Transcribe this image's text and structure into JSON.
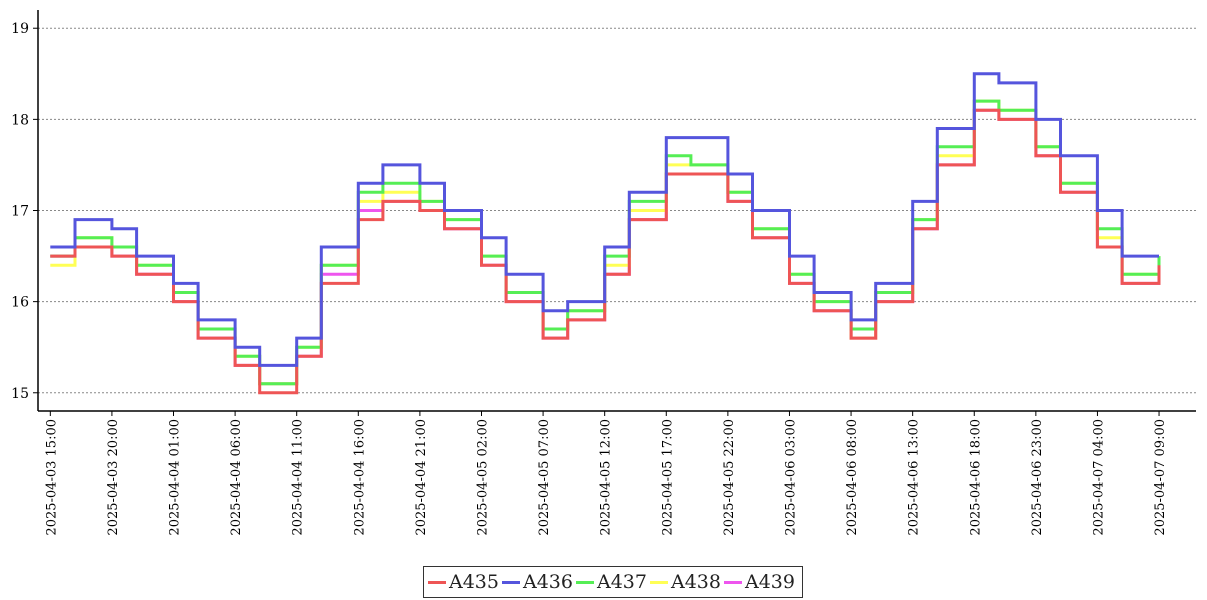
{
  "chart_data": {
    "type": "line",
    "step": true,
    "title": "",
    "xlabel": "",
    "ylabel": "",
    "ylim": [
      14.8,
      19.2
    ],
    "yticks": [
      15,
      16,
      17,
      18,
      19
    ],
    "xrange": [
      "2025-04-03 14:00",
      "2025-04-07 12:00"
    ],
    "xtick_labels": [
      "2025-04-03 15:00",
      "2025-04-03 20:00",
      "2025-04-04 01:00",
      "2025-04-04 06:00",
      "2025-04-04 11:00",
      "2025-04-04 16:00",
      "2025-04-04 21:00",
      "2025-04-05 02:00",
      "2025-04-05 07:00",
      "2025-04-05 12:00",
      "2025-04-05 17:00",
      "2025-04-05 22:00",
      "2025-04-06 03:00",
      "2025-04-06 08:00",
      "2025-04-06 13:00",
      "2025-04-06 18:00",
      "2025-04-06 23:00",
      "2025-04-07 04:00",
      "2025-04-07 09:00"
    ],
    "grid": {
      "y": true,
      "x": false,
      "style": "dotted"
    },
    "legend_position": "bottom-center",
    "x": [
      "2025-04-03 15:00",
      "2025-04-03 17:00",
      "2025-04-03 20:00",
      "2025-04-03 22:00",
      "2025-04-04 01:00",
      "2025-04-04 03:00",
      "2025-04-04 06:00",
      "2025-04-04 08:00",
      "2025-04-04 11:00",
      "2025-04-04 13:00",
      "2025-04-04 16:00",
      "2025-04-04 18:00",
      "2025-04-04 21:00",
      "2025-04-04 23:00",
      "2025-04-05 02:00",
      "2025-04-05 04:00",
      "2025-04-05 07:00",
      "2025-04-05 09:00",
      "2025-04-05 12:00",
      "2025-04-05 14:00",
      "2025-04-05 17:00",
      "2025-04-05 19:00",
      "2025-04-05 22:00",
      "2025-04-06 00:00",
      "2025-04-06 03:00",
      "2025-04-06 05:00",
      "2025-04-06 08:00",
      "2025-04-06 10:00",
      "2025-04-06 13:00",
      "2025-04-06 15:00",
      "2025-04-06 18:00",
      "2025-04-06 20:00",
      "2025-04-06 23:00",
      "2025-04-07 01:00",
      "2025-04-07 04:00",
      "2025-04-07 06:00",
      "2025-04-07 09:00"
    ],
    "series": [
      {
        "name": "A435",
        "color": "#ee5555",
        "values": [
          16.5,
          16.6,
          16.5,
          16.3,
          16.0,
          15.6,
          15.3,
          15.0,
          15.4,
          16.2,
          16.9,
          17.1,
          17.0,
          16.8,
          16.4,
          16.0,
          15.6,
          15.8,
          16.3,
          16.9,
          17.4,
          17.4,
          17.1,
          16.7,
          16.2,
          15.9,
          15.6,
          16.0,
          16.8,
          17.5,
          18.1,
          18.0,
          17.6,
          17.2,
          16.6,
          16.2,
          16.4
        ]
      },
      {
        "name": "A436",
        "color": "#5555dd",
        "values": [
          16.6,
          16.9,
          16.8,
          16.5,
          16.2,
          15.8,
          15.5,
          15.3,
          15.6,
          16.6,
          17.3,
          17.5,
          17.3,
          17.0,
          16.7,
          16.3,
          15.9,
          16.0,
          16.6,
          17.2,
          17.8,
          17.8,
          17.4,
          17.0,
          16.5,
          16.1,
          15.8,
          16.2,
          17.1,
          17.9,
          18.5,
          18.4,
          18.0,
          17.6,
          17.0,
          16.5,
          16.5
        ]
      },
      {
        "name": "A437",
        "color": "#55ee55",
        "values": [
          16.5,
          16.7,
          16.6,
          16.4,
          16.1,
          15.7,
          15.4,
          15.1,
          15.5,
          16.4,
          17.2,
          17.3,
          17.1,
          16.9,
          16.5,
          16.1,
          15.7,
          15.9,
          16.5,
          17.1,
          17.6,
          17.5,
          17.2,
          16.8,
          16.3,
          16.0,
          15.7,
          16.1,
          16.9,
          17.7,
          18.2,
          18.1,
          17.7,
          17.3,
          16.8,
          16.3,
          16.5
        ]
      },
      {
        "name": "A438",
        "color": "#ffff55",
        "values": [
          16.4,
          16.7,
          16.6,
          16.4,
          16.1,
          15.7,
          15.4,
          15.1,
          15.5,
          16.4,
          17.1,
          17.2,
          17.1,
          16.9,
          16.5,
          16.1,
          15.7,
          15.9,
          16.4,
          17.0,
          17.5,
          17.5,
          17.2,
          16.8,
          16.3,
          16.0,
          15.6,
          16.1,
          16.9,
          17.6,
          18.2,
          18.1,
          17.7,
          17.3,
          16.7,
          16.3,
          16.5
        ]
      },
      {
        "name": "A439",
        "color": "#ee55ee",
        "values": [
          16.5,
          16.6,
          16.5,
          16.3,
          16.0,
          15.6,
          15.3,
          15.1,
          15.4,
          16.3,
          17.0,
          17.1,
          17.0,
          16.8,
          16.4,
          16.0,
          15.6,
          15.8,
          16.3,
          16.9,
          17.4,
          17.4,
          17.1,
          16.7,
          16.2,
          15.9,
          15.6,
          16.0,
          16.8,
          17.5,
          18.1,
          18.0,
          17.6,
          17.2,
          16.6,
          16.2,
          16.4
        ]
      }
    ]
  }
}
